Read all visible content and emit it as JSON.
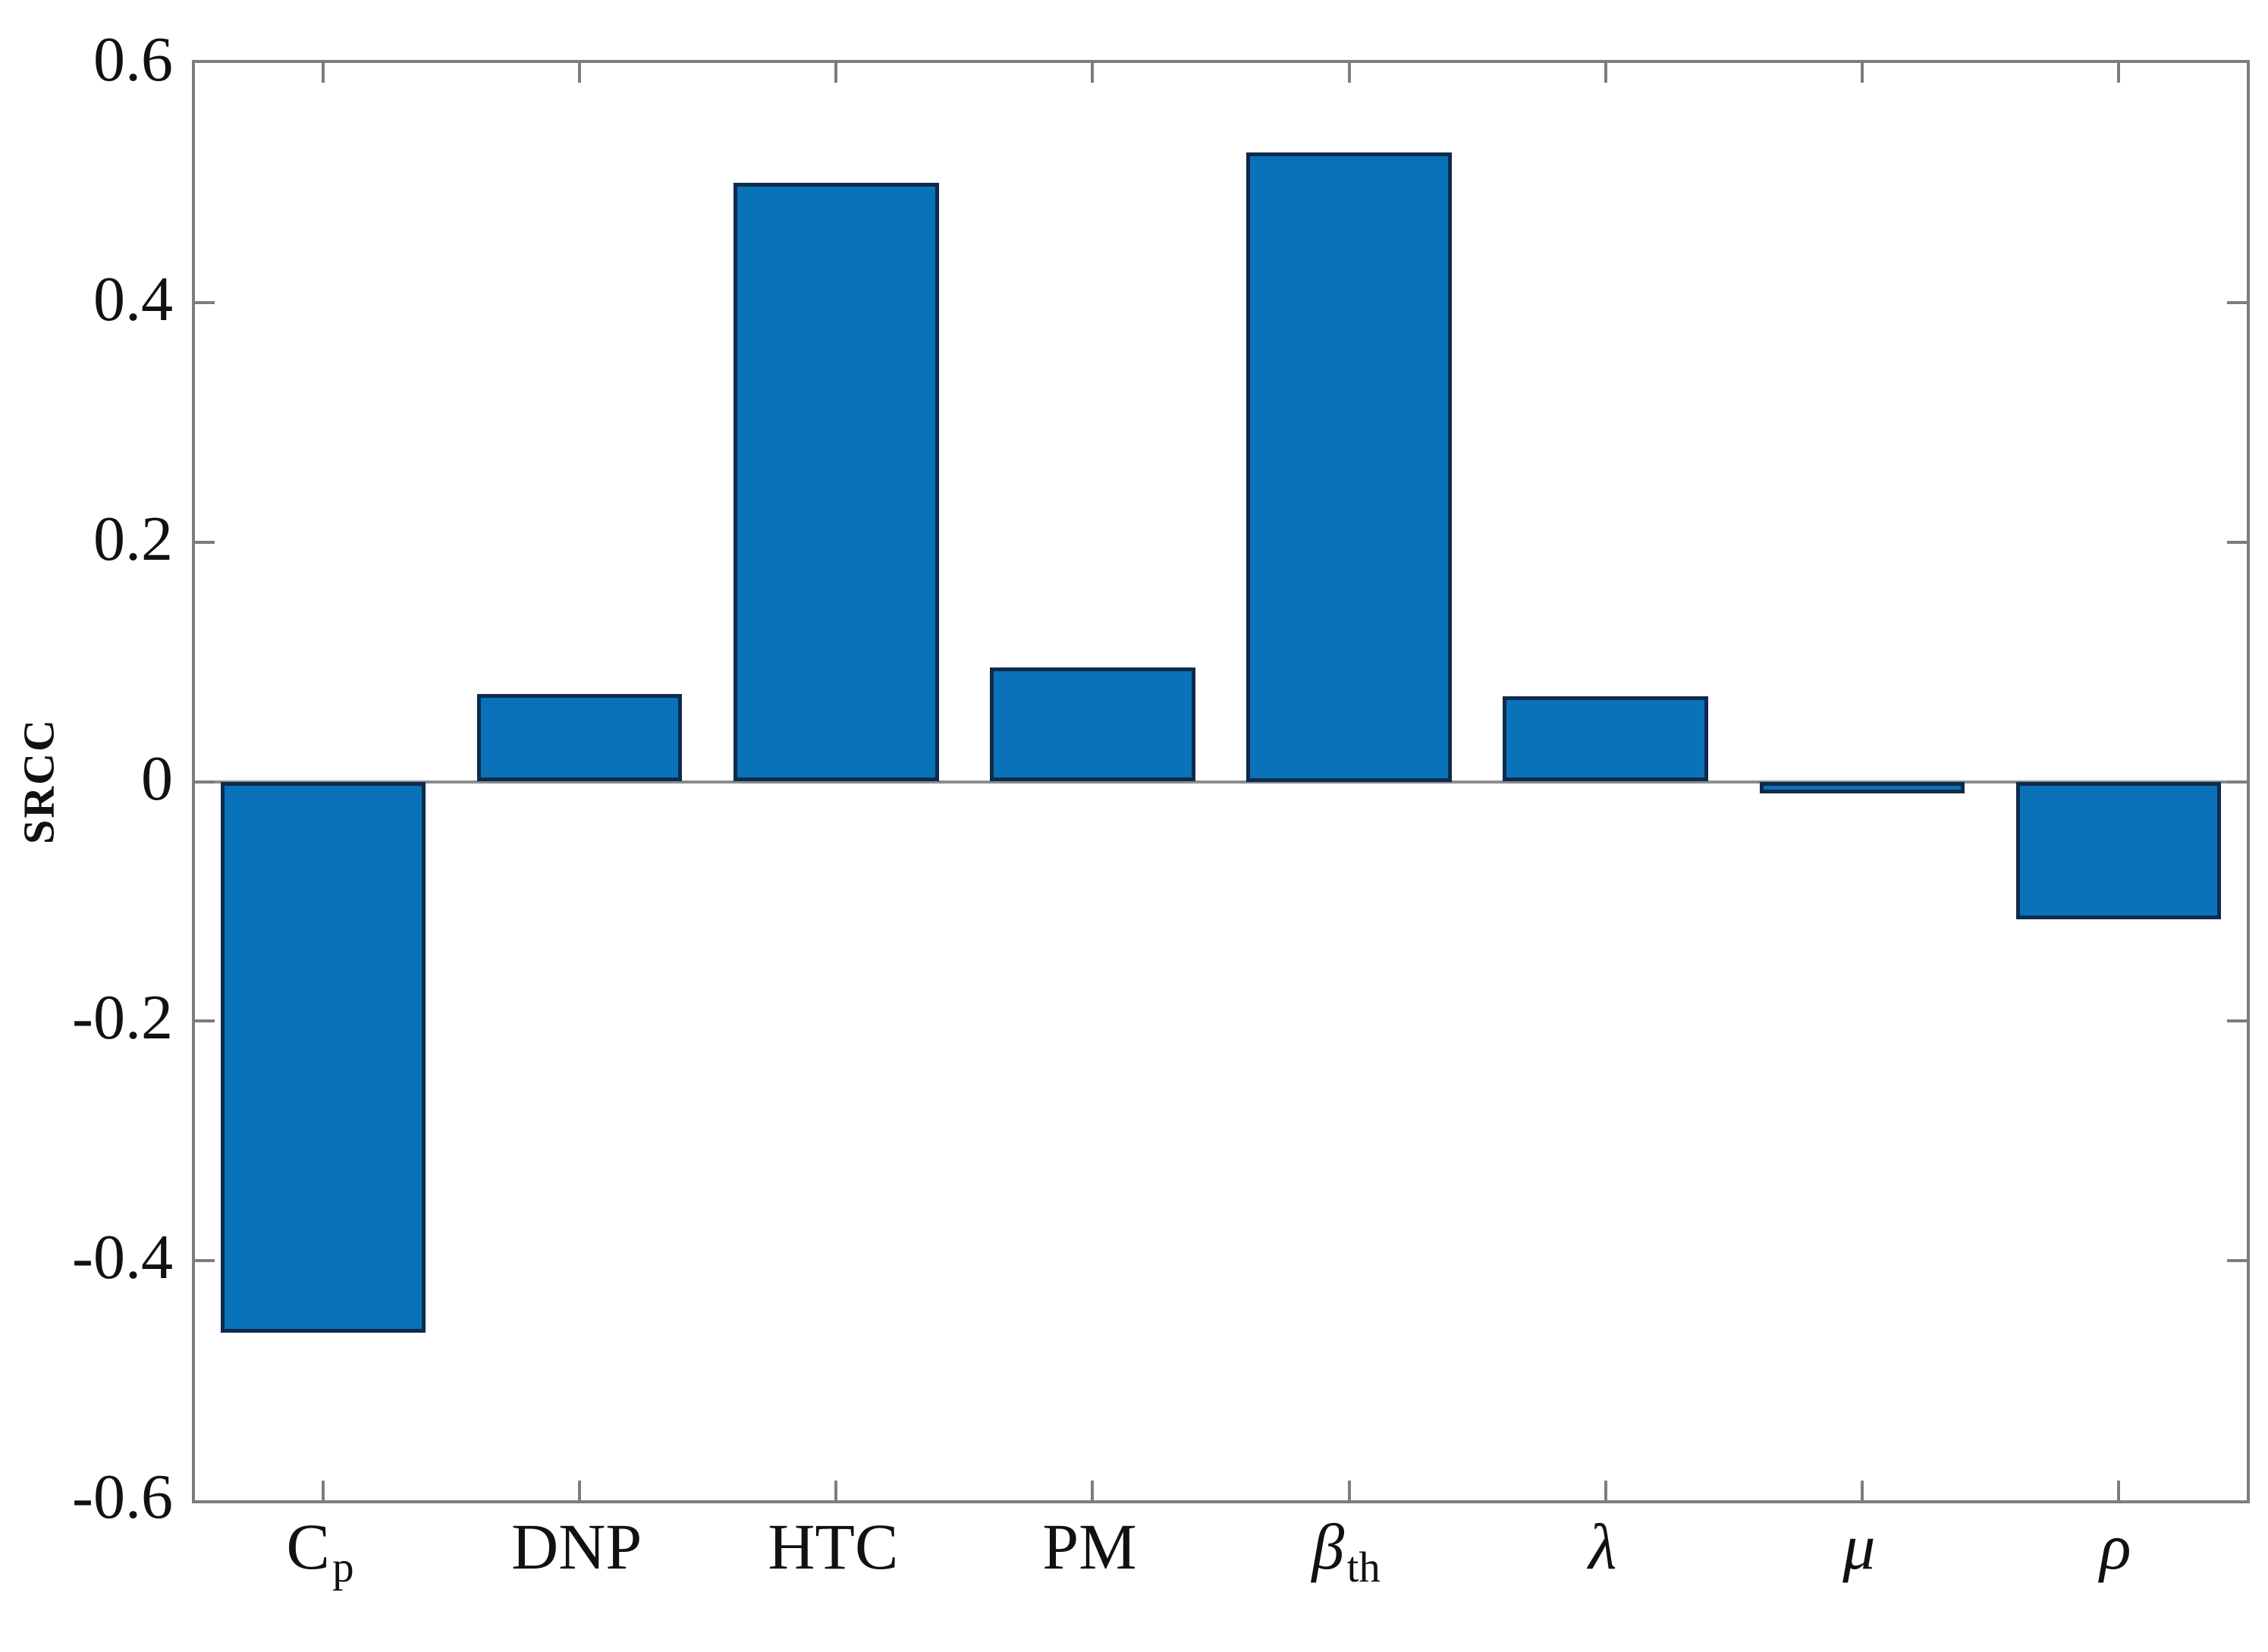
{
  "chart_data": {
    "type": "bar",
    "title": "",
    "xlabel": "",
    "ylabel": "SRCC",
    "categories": [
      "C_p",
      "DNP",
      "HTC",
      "PM",
      "β_th",
      "λ",
      "μ",
      "ρ"
    ],
    "categories_rich": [
      {
        "text": "C",
        "sub": "p",
        "italic": false
      },
      {
        "text": "DNP",
        "sub": "",
        "italic": false
      },
      {
        "text": "HTC",
        "sub": "",
        "italic": false
      },
      {
        "text": "PM",
        "sub": "",
        "italic": false
      },
      {
        "text": "β",
        "sub": "th",
        "italic": true
      },
      {
        "text": "λ",
        "sub": "",
        "italic": true
      },
      {
        "text": "μ",
        "sub": "",
        "italic": true
      },
      {
        "text": "ρ",
        "sub": "",
        "italic": true
      }
    ],
    "values": [
      -0.46,
      0.073,
      0.5,
      0.095,
      0.525,
      0.071,
      -0.01,
      -0.115
    ],
    "ylim": [
      -0.6,
      0.6
    ],
    "yticks": [
      0.6,
      0.4,
      0.2,
      0,
      -0.2,
      -0.4,
      -0.6
    ],
    "ytick_labels": [
      "0.6",
      "0.4",
      "0.2",
      "0",
      "-0.2",
      "-0.4",
      "-0.6"
    ],
    "bar_width_fraction": 0.8,
    "grid": false,
    "legend": null,
    "colors": {
      "bar_fill": "#0a72b8",
      "bar_edge": "#0e2b4d",
      "axis": "#7d7d7d",
      "text": "#111111",
      "background": "#ffffff"
    }
  }
}
